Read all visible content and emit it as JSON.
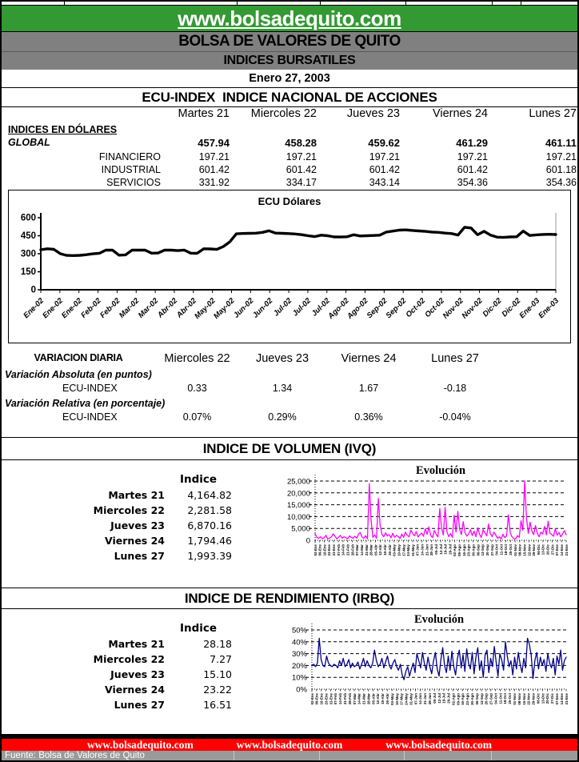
{
  "banner": {
    "url_text": "www.bolsadequito.com"
  },
  "header": {
    "org": "BOLSA DE VALORES DE QUITO",
    "subtitle": "INDICES BURSATILES",
    "date": "Enero 27, 2003"
  },
  "ecu_section": {
    "title": "ECU-INDEX  INDICE NACIONAL DE ACCIONES",
    "day_headers": [
      "Martes 21",
      "Miercoles 22",
      "Jueves 23",
      "Viernes 24",
      "Lunes 27"
    ],
    "group_label": "INDICES EN DÓLARES",
    "rows": [
      {
        "label": "GLOBAL",
        "values": [
          "457.94",
          "458.28",
          "459.62",
          "461.29",
          "461.11"
        ]
      },
      {
        "label": "FINANCIERO",
        "values": [
          "197.21",
          "197.21",
          "197.21",
          "197.21",
          "197.21"
        ]
      },
      {
        "label": "INDUSTRIAL",
        "values": [
          "601.42",
          "601.42",
          "601.42",
          "601.42",
          "601.18"
        ]
      },
      {
        "label": "SERVICIOS",
        "values": [
          "331.92",
          "334.17",
          "343.14",
          "354.36",
          "354.36"
        ]
      }
    ]
  },
  "variacion": {
    "title": "VARIACION DIARIA",
    "day_headers": [
      "Miercoles 22",
      "Jueves 23",
      "Viernes 24",
      "Lunes 27"
    ],
    "abs_label": "Variación Absoluta (en puntos)",
    "rel_label": "Variación Relativa (en porcentaje)",
    "row_label": "ECU-INDEX",
    "abs_values": [
      "0.33",
      "1.34",
      "1.67",
      "-0.18"
    ],
    "rel_values": [
      "0.07%",
      "0.29%",
      "0.36%",
      "-0.04%"
    ]
  },
  "ivq_section": {
    "title": "INDICE DE VOLUMEN (IVQ)",
    "col_header": "Indice",
    "rows": [
      {
        "label": "Martes 21",
        "value": "4,164.82"
      },
      {
        "label": "Miercoles 22",
        "value": "2,281.58"
      },
      {
        "label": "Jueves 23",
        "value": "6,870.16"
      },
      {
        "label": "Viernes 24",
        "value": "1,794.46"
      },
      {
        "label": "Lunes 27",
        "value": "1,993.39"
      }
    ]
  },
  "irbq_section": {
    "title": "INDICE DE RENDIMIENTO (IRBQ)",
    "col_header": "Indice",
    "rows": [
      {
        "label": "Martes 21",
        "value": "28.18"
      },
      {
        "label": "Miercoles 22",
        "value": "7.27"
      },
      {
        "label": "Jueves 23",
        "value": "15.10"
      },
      {
        "label": "Viernes 24",
        "value": "23.22"
      },
      {
        "label": "Lunes 27",
        "value": "16.51"
      }
    ]
  },
  "footer": {
    "links": [
      "www.bolsadequito.com",
      "www.bolsadequito.com",
      "www.bolsadequito.com"
    ],
    "fuente": "Fuente: Bolsa de Valores de Quito"
  },
  "colors": {
    "banner_green": "#339933",
    "bar_gray": "#808080",
    "footer_red": "#ff0000",
    "footer_gray": "#9a9a9a",
    "ivq_line": "#FF00FF",
    "irbq_line": "#00008B",
    "ecu_line": "#000000"
  },
  "chart_data": [
    {
      "type": "line",
      "title": "ECU Dólares",
      "ylim": [
        0,
        600
      ],
      "yticks": [
        0,
        150,
        300,
        450,
        600
      ],
      "grid": false,
      "legend": "none",
      "x_tick_labels": [
        "Ene-02",
        "Ene-02",
        "Ene-02",
        "Feb-02",
        "Feb-02",
        "Mar-02",
        "Mar-02",
        "Abr-02",
        "Abr-02",
        "May-02",
        "May-02",
        "Jun-02",
        "Jun-02",
        "Jul-02",
        "Jul-02",
        "Jul-02",
        "Ago-02",
        "Ago-02",
        "Sep-02",
        "Sep-02",
        "Oct-02",
        "Oct-02",
        "Nov-02",
        "Nov-02",
        "Dic-02",
        "Dic-02",
        "Ene-03",
        "Ene-03"
      ],
      "series": [
        {
          "name": "ECU Dólares",
          "color": "#000000",
          "values": [
            333,
            341,
            337,
            300,
            286,
            285,
            287,
            292,
            299,
            304,
            331,
            330,
            288,
            291,
            330,
            331,
            330,
            305,
            306,
            331,
            330,
            326,
            331,
            305,
            304,
            341,
            340,
            336,
            360,
            399,
            466,
            469,
            470,
            471,
            478,
            491,
            472,
            470,
            468,
            465,
            459,
            450,
            443,
            455,
            450,
            440,
            439,
            441,
            458,
            448,
            450,
            452,
            455,
            481,
            489,
            497,
            499,
            494,
            490,
            486,
            481,
            478,
            472,
            468,
            456,
            520,
            515,
            458,
            487,
            455,
            438,
            436,
            440,
            441,
            489,
            452,
            457,
            461,
            462,
            460
          ]
        }
      ]
    },
    {
      "type": "line",
      "title": "Evolución",
      "ylim": [
        0,
        25000
      ],
      "yticks": [
        0,
        5000,
        10000,
        15000,
        20000,
        25000
      ],
      "ytick_labels": [
        "0",
        "5,000",
        "10,000",
        "15,000",
        "20,000",
        "25,000"
      ],
      "grid": "dashed-horizontal",
      "legend": "none",
      "x_tick_labels": [
        "02-Ene",
        "09-Ene",
        "16-Ene",
        "23-Ene",
        "31-Ene",
        "07-Feb",
        "14-Feb",
        "21-Feb",
        "28-Feb",
        "07-Mar",
        "14-Mar",
        "21-Mar",
        "28-Mar",
        "05-Abr",
        "12-Abr",
        "19-Abr",
        "26-Abr",
        "03-May",
        "10-May",
        "17-May",
        "24-May",
        "31-May",
        "07-Jun",
        "14-Jun",
        "21-Jun",
        "28-Jun",
        "05-Jul",
        "12-Jul",
        "19-Jul",
        "26-Jul",
        "02-Ago",
        "09-Ago",
        "16-Ago",
        "23-Ago",
        "30-Ago",
        "06-Sep",
        "13-Sep",
        "20-Sep",
        "27-Sep",
        "04-Oct",
        "11-Oct",
        "18-Oct",
        "25-Oct",
        "01-Nov",
        "08-Nov",
        "15-Nov",
        "22-Nov",
        "29-Nov",
        "06-Dic",
        "13-Dic",
        "20-Dic",
        "27-Dic",
        "07-Ene",
        "14-Ene",
        "21-Ene"
      ],
      "series": [
        {
          "name": "IVQ",
          "color": "#FF00FF",
          "values": [
            2900,
            1100,
            850,
            1500,
            700,
            1050,
            2100,
            550,
            900,
            1400,
            2700,
            1800,
            650,
            1250,
            2050,
            900,
            1500,
            1100,
            600,
            1850,
            1300,
            850,
            1650,
            950,
            2500,
            3300,
            1350,
            800,
            1950,
            600,
            23900,
            8600,
            1250,
            2250,
            850,
            17700,
            6300,
            2600,
            1500,
            3150,
            1850,
            2400,
            1050,
            2950,
            1300,
            2050,
            1600,
            750,
            2650,
            1250,
            3450,
            2100,
            1500,
            4250,
            2850,
            1900,
            3650,
            1400,
            2350,
            3050,
            1700,
            4850,
            2500,
            5650,
            2000,
            1150,
            4150,
            2600,
            1350,
            13400,
            5250,
            2200,
            13900,
            3500,
            1550,
            2850,
            1200,
            10600,
            3400,
            12200,
            4650,
            2400,
            7850,
            3100,
            1800,
            2650,
            4450,
            2000,
            3850,
            1500,
            5250,
            2600,
            1150,
            4450,
            3250,
            1900,
            6850,
            2800,
            1550,
            3450,
            2200,
            850,
            1500,
            550,
            2550,
            1100,
            1900,
            10700,
            3250,
            1450,
            750,
            550,
            1950,
            1300,
            8250,
            4250,
            25000,
            9600,
            2850,
            7650,
            3850,
            2400,
            6250,
            2950,
            1500,
            3450,
            2650,
            5850,
            2250,
            8050,
            3000,
            2400,
            1700,
            4900,
            2100,
            3300,
            1500,
            2700,
            4100,
            2300
          ]
        }
      ]
    },
    {
      "type": "line",
      "title": "Evolución",
      "ylim": [
        0,
        50
      ],
      "yticks": [
        0,
        10,
        20,
        30,
        40,
        50
      ],
      "ytick_labels": [
        "0%",
        "10%",
        "20%",
        "30%",
        "40%",
        "50%"
      ],
      "grid": "dashed-horizontal",
      "legend": "none",
      "x_tick_labels": [
        "02-Ene",
        "09-Ene",
        "16-Ene",
        "23-Ene",
        "31-Ene",
        "07-Feb",
        "14-Feb",
        "21-Feb",
        "28-Feb",
        "07-Mar",
        "14-Mar",
        "21-Mar",
        "28-Mar",
        "05-Abr",
        "12-Abr",
        "19-Abr",
        "26-Abr",
        "03-May",
        "10-May",
        "17-May",
        "24-May",
        "31-May",
        "07-Jun",
        "14-Jun",
        "21-Jun",
        "28-Jun",
        "05-Jul",
        "12-Jul",
        "19-Jul",
        "26-Jul",
        "02-Ago",
        "09-Ago",
        "16-Ago",
        "23-Ago",
        "30-Ago",
        "06-Sep",
        "13-Sep",
        "20-Sep",
        "27-Sep",
        "04-Oct",
        "11-Oct",
        "18-Oct",
        "25-Oct",
        "01-Nov",
        "08-Nov",
        "15-Nov",
        "22-Nov",
        "29-Nov",
        "06-Dic",
        "13-Dic",
        "20-Dic",
        "27-Dic",
        "07-Ene",
        "14-Ene",
        "21-Ene"
      ],
      "series": [
        {
          "name": "IRBQ",
          "color": "#00008B",
          "values": [
            20,
            21,
            19,
            22,
            43,
            25,
            20,
            19,
            28,
            22,
            20,
            19,
            21,
            20,
            18,
            24,
            20,
            26,
            19,
            21,
            25,
            18,
            22,
            19,
            20,
            23,
            17,
            21,
            26,
            19,
            24,
            20,
            18,
            22,
            33,
            24,
            19,
            21,
            26,
            18,
            23,
            28,
            20,
            17,
            22,
            25,
            19,
            16,
            21,
            12,
            8,
            15,
            19,
            11,
            17,
            22,
            14,
            30,
            24,
            18,
            31,
            22,
            16,
            27,
            19,
            13,
            24,
            31,
            17,
            11,
            25,
            35,
            20,
            14,
            28,
            16,
            32,
            19,
            12,
            26,
            33,
            18,
            29,
            15,
            34,
            22,
            17,
            31,
            13,
            27,
            35,
            16,
            24,
            10,
            29,
            33,
            14,
            26,
            19,
            36,
            23,
            11,
            30,
            25,
            16,
            40,
            28,
            19,
            24,
            12,
            27,
            17,
            31,
            21,
            14,
            26,
            18,
            43,
            38,
            29,
            9,
            24,
            31,
            17,
            27,
            20,
            25,
            15,
            30,
            22,
            18,
            26,
            12,
            28,
            21,
            33,
            16,
            24,
            27
          ]
        }
      ]
    }
  ]
}
